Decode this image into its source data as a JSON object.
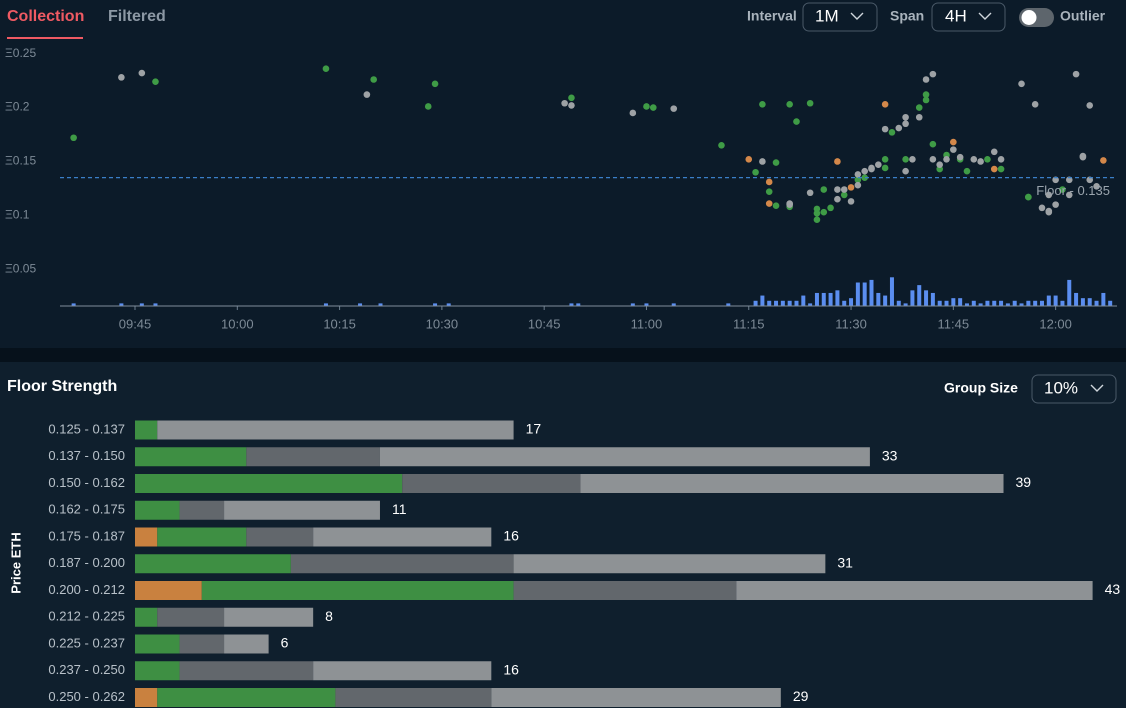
{
  "tabs": [
    "Collection",
    "Filtered"
  ],
  "controls": {
    "interval": {
      "label": "Interval",
      "value": "1M"
    },
    "span": {
      "label": "Span",
      "value": "4H"
    },
    "outlier": "Outlier",
    "group_size": {
      "label": "Group Size",
      "value": "10%"
    }
  },
  "chart_data": [
    {
      "type": "scatter",
      "xlim": [
        "09:34",
        "12:09"
      ],
      "xticks": [
        "09:45",
        "10:00",
        "10:15",
        "10:30",
        "10:45",
        "11:00",
        "11:15",
        "11:30",
        "11:45",
        "12:00"
      ],
      "ylim": [
        0.016,
        0.258
      ],
      "yticks": [
        {
          "value": 0.25,
          "label": "Ξ0.25"
        },
        {
          "value": 0.2,
          "label": "Ξ0.2"
        },
        {
          "value": 0.15,
          "label": "Ξ0.15"
        },
        {
          "value": 0.1,
          "label": "Ξ0.1"
        },
        {
          "value": 0.05,
          "label": "Ξ0.05"
        }
      ],
      "y2lim": [
        0,
        100
      ],
      "floor": {
        "value": 0.135,
        "label": "Floor - 0.135"
      },
      "series": [
        {
          "color": "#3f9c46",
          "x": [
            "09:36",
            "09:48",
            "10:13",
            "10:20",
            "10:28",
            "10:29",
            "10:49",
            "11:00",
            "11:01",
            "11:11",
            "11:16",
            "11:19",
            "11:18",
            "11:19",
            "11:21",
            "11:17",
            "11:21",
            "11:22",
            "11:24",
            "11:25",
            "11:25",
            "11:25",
            "11:26",
            "11:26",
            "11:27",
            "11:29",
            "11:31",
            "11:32",
            "11:35",
            "11:35",
            "11:36",
            "11:38",
            "11:40",
            "11:41",
            "11:41",
            "11:42",
            "11:43",
            "11:44",
            "11:46",
            "11:47",
            "11:50",
            "11:52",
            "11:56",
            "11:56",
            "12:01"
          ],
          "values": [
            0.172,
            0.224,
            0.236,
            0.226,
            0.201,
            0.222,
            0.209,
            0.201,
            0.2,
            0.165,
            0.14,
            0.149,
            0.122,
            0.109,
            0.108,
            0.203,
            0.203,
            0.187,
            0.204,
            0.106,
            0.102,
            0.096,
            0.103,
            0.124,
            0.107,
            0.119,
            0.133,
            0.135,
            0.144,
            0.152,
            0.177,
            0.152,
            0.2,
            0.207,
            0.212,
            0.166,
            0.143,
            0.156,
            0.152,
            0.141,
            0.152,
            0.143,
            0.117,
            0.117,
            0.124
          ]
        },
        {
          "color": "#9ea2a5",
          "x": [
            "09:43",
            "09:46",
            "10:19",
            "10:48",
            "10:49",
            "10:58",
            "11:04",
            "11:17",
            "11:21",
            "11:21",
            "11:24",
            "11:28",
            "11:28",
            "11:29",
            "11:30",
            "11:31",
            "11:31",
            "11:32",
            "11:33",
            "11:33",
            "11:34",
            "11:35",
            "11:37",
            "11:38",
            "11:38",
            "11:38",
            "11:39",
            "11:40",
            "11:41",
            "11:42",
            "11:42",
            "11:43",
            "11:44",
            "11:45",
            "11:46",
            "11:48",
            "11:49",
            "11:51",
            "11:52",
            "11:55",
            "11:57",
            "11:58",
            "11:59",
            "11:59",
            "11:59",
            "12:00",
            "12:00",
            "12:02",
            "12:02",
            "12:03",
            "12:04",
            "12:04",
            "12:05",
            "12:05",
            "12:06"
          ],
          "values": [
            0.228,
            0.232,
            0.212,
            0.204,
            0.202,
            0.195,
            0.199,
            0.15,
            0.11,
            0.111,
            0.121,
            0.124,
            0.115,
            0.124,
            0.113,
            0.128,
            0.138,
            0.141,
            0.143,
            0.144,
            0.147,
            0.18,
            0.181,
            0.185,
            0.191,
            0.141,
            0.152,
            0.191,
            0.226,
            0.231,
            0.152,
            0.147,
            0.152,
            0.161,
            0.154,
            0.152,
            0.15,
            0.159,
            0.152,
            0.222,
            0.203,
            0.107,
            0.103,
            0.104,
            0.119,
            0.11,
            0.133,
            0.119,
            0.133,
            0.231,
            0.154,
            0.155,
            0.202,
            0.133,
            0.127
          ]
        },
        {
          "color": "#d4884a",
          "x": [
            "11:15",
            "11:18",
            "11:18",
            "11:28",
            "11:30",
            "11:35",
            "11:45",
            "11:51",
            "12:07"
          ],
          "values": [
            0.152,
            0.131,
            0.111,
            0.15,
            0.126,
            0.203,
            0.168,
            0.143,
            0.151
          ]
        },
        {
          "type": "bar",
          "axis": "y2",
          "color": "#5b8ef0",
          "x": [
            "09:36",
            "09:43",
            "09:46",
            "09:48",
            "10:13",
            "10:18",
            "10:21",
            "10:29",
            "10:31",
            "10:49",
            "10:50",
            "10:58",
            "11:00",
            "11:04",
            "11:12",
            "11:16",
            "11:17",
            "11:18",
            "11:19",
            "11:20",
            "11:21",
            "11:22",
            "11:23",
            "11:24",
            "11:25",
            "11:26",
            "11:27",
            "11:28",
            "11:29",
            "11:30",
            "11:31",
            "11:32",
            "11:33",
            "11:34",
            "11:35",
            "11:36",
            "11:37",
            "11:38",
            "11:39",
            "11:40",
            "11:41",
            "11:42",
            "11:43",
            "11:44",
            "11:45",
            "11:46",
            "11:47",
            "11:48",
            "11:49",
            "11:50",
            "11:51",
            "11:52",
            "11:53",
            "11:54",
            "11:55",
            "11:56",
            "11:57",
            "11:58",
            "11:59",
            "12:00",
            "12:01",
            "12:02",
            "12:03",
            "12:04",
            "12:05",
            "12:06",
            "12:07",
            "12:08"
          ],
          "values": [
            1,
            1,
            1,
            1,
            1,
            1,
            1,
            1,
            1,
            1,
            1,
            1,
            1,
            1,
            1,
            2,
            4,
            2,
            2,
            2,
            2,
            2,
            4,
            1,
            5,
            5,
            5,
            6,
            2,
            3,
            9,
            9,
            10,
            5,
            4,
            11,
            2,
            1,
            6,
            8,
            6,
            5,
            2,
            2,
            3,
            3,
            1,
            2,
            1,
            2,
            2,
            2,
            1,
            2,
            1,
            2,
            2,
            2,
            4,
            4,
            2,
            10,
            5,
            3,
            3,
            2,
            5,
            2
          ]
        }
      ]
    },
    {
      "type": "bar",
      "orientation": "horizontal",
      "stacked": true,
      "title": "Floor Strength",
      "ylabel": "Price ETH",
      "xlim": [
        0,
        44.5
      ],
      "categories": [
        "0.125 - 0.137",
        "0.137 - 0.150",
        "0.150 - 0.162",
        "0.162 - 0.175",
        "0.175 - 0.187",
        "0.187 - 0.200",
        "0.200 - 0.212",
        "0.212 - 0.225",
        "0.225 - 0.237",
        "0.237 - 0.250",
        "0.250 - 0.262"
      ],
      "series": [
        {
          "color": "#c9813f",
          "values": [
            0,
            0,
            0,
            0,
            1,
            0,
            3,
            0,
            0,
            0,
            1
          ]
        },
        {
          "color": "#3e8f43",
          "values": [
            1,
            5,
            12,
            2,
            4,
            7,
            14,
            1,
            2,
            2,
            8
          ]
        },
        {
          "color": "#62676c",
          "values": [
            0,
            6,
            8,
            2,
            3,
            10,
            10,
            3,
            2,
            6,
            7
          ]
        },
        {
          "color": "#8e9295",
          "values": [
            16,
            22,
            19,
            7,
            8,
            14,
            16,
            4,
            2,
            8,
            13
          ]
        }
      ],
      "totals": [
        17,
        33,
        39,
        11,
        16,
        31,
        43,
        8,
        6,
        16,
        29
      ]
    }
  ]
}
